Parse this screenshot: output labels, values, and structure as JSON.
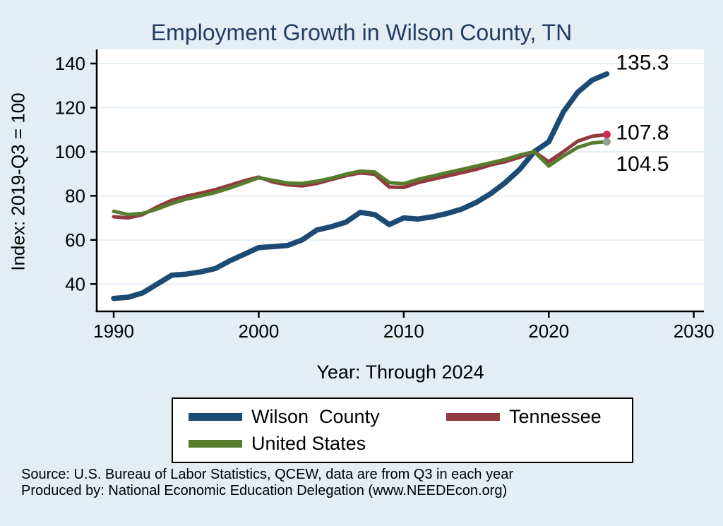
{
  "title": "Employment Growth in Wilson County, TN",
  "ylabel": "Index: 2019-Q3 = 100",
  "xlabel": "Year: Through 2024",
  "source": {
    "line1": "Source: U.S. Bureau of Labor Statistics, QCEW, data are from Q3 in each year",
    "line2": "Produced by: National Economic Education Delegation (www.NEEDEcon.org)"
  },
  "colors": {
    "background": "#e3edf3",
    "plot_background": "#ffffff",
    "gridline": "#e4eef5",
    "axis": "#000000",
    "title": "#233c63",
    "wilson_line": "#1b4a72",
    "tennessee_line": "#94383f",
    "us_line": "#567c2d",
    "tennessee_end_dot": "#cc2d4d",
    "us_end_dot": "#8ba18c"
  },
  "legend": {
    "items": [
      {
        "label": "Wilson  County",
        "color": "#1b4a72"
      },
      {
        "label": "Tennessee",
        "color": "#94383f"
      },
      {
        "label": "United States",
        "color": "#567c2d"
      }
    ]
  },
  "chart_data": {
    "type": "line",
    "title": "Employment Growth in Wilson County, TN",
    "xlabel": "Year: Through 2024",
    "ylabel": "Index: 2019-Q3 = 100",
    "grid": "horizontal",
    "legend_position": "bottom",
    "xlim": [
      1988.83,
      2030.7
    ],
    "ylim": [
      27.6,
      146.4
    ],
    "xticks": [
      1990,
      2000,
      2010,
      2020,
      2030
    ],
    "yticks": [
      40,
      60,
      80,
      100,
      120,
      140
    ],
    "x": [
      1990,
      1991,
      1992,
      1993,
      1994,
      1995,
      1996,
      1997,
      1998,
      1999,
      2000,
      2001,
      2002,
      2003,
      2004,
      2005,
      2006,
      2007,
      2008,
      2009,
      2010,
      2011,
      2012,
      2013,
      2014,
      2015,
      2016,
      2017,
      2018,
      2019,
      2020,
      2021,
      2022,
      2023,
      2024
    ],
    "series": [
      {
        "name": "Wilson  County",
        "color": "#1b4a72",
        "stroke_width": 7.5,
        "end_label": "135.3",
        "values": [
          33.5,
          34,
          36,
          40,
          44,
          44.5,
          45.5,
          47,
          50.5,
          53.5,
          56.5,
          57,
          57.5,
          60,
          64.5,
          66,
          68,
          72.5,
          71.5,
          67,
          70,
          69.5,
          70.5,
          72,
          74,
          77,
          81,
          86,
          92,
          100,
          104.5,
          118,
          127,
          132.5,
          135.3
        ]
      },
      {
        "name": "Tennessee",
        "color": "#94383f",
        "stroke_width": 5,
        "end_label": "107.8",
        "end_dot_color": "#cc2d4d",
        "values": [
          70.5,
          70,
          71.5,
          75,
          78,
          79.8,
          81.2,
          82.8,
          84.8,
          86.8,
          88.5,
          86.2,
          85,
          84.5,
          85.6,
          87.4,
          89.1,
          90.4,
          89.8,
          84,
          83.8,
          86,
          87.5,
          89,
          90.5,
          92,
          94,
          95.5,
          97.5,
          100,
          95.5,
          100,
          104.8,
          107,
          107.8
        ]
      },
      {
        "name": "United States",
        "color": "#567c2d",
        "stroke_width": 5,
        "end_label": "104.5",
        "end_dot_color": "#8ba18c",
        "values": [
          73,
          71.5,
          72,
          74,
          76.5,
          78.5,
          80,
          81.5,
          83.5,
          85.8,
          88.2,
          87,
          85.8,
          85.6,
          86.6,
          88,
          89.8,
          91.2,
          90.8,
          86,
          85.5,
          87.5,
          89,
          90.5,
          92,
          93.5,
          95,
          96.5,
          98.5,
          100,
          93.5,
          98,
          102,
          104,
          104.5
        ]
      }
    ]
  }
}
